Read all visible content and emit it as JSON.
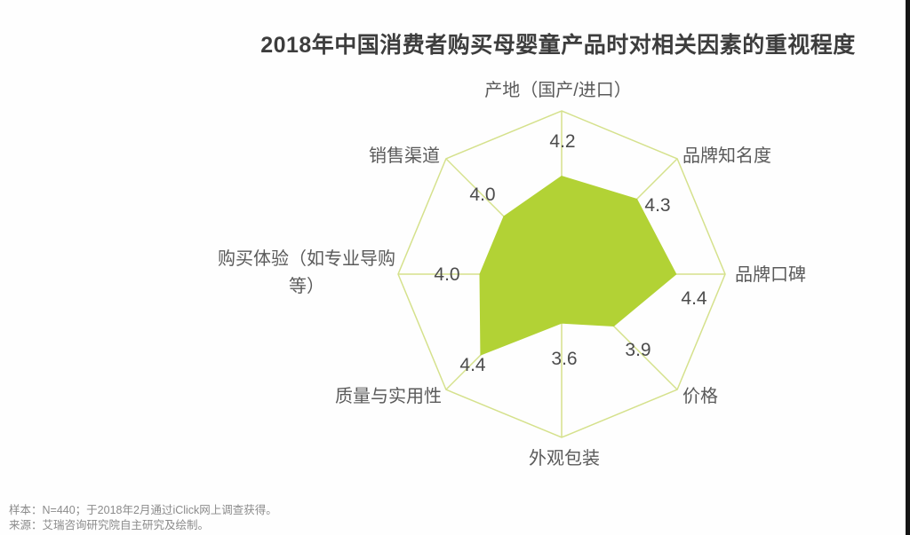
{
  "title": "2018年中国消费者购买母婴童产品时对相关因素的重视程度",
  "chart_data": {
    "type": "radar",
    "categories": [
      "产地（国产/进口）",
      "品牌知名度",
      "品牌口碑",
      "价格",
      "外观包装",
      "质量与实用性",
      "购买体验（如专业导购等）",
      "销售渠道"
    ],
    "values": [
      4.2,
      4.3,
      4.4,
      3.9,
      3.6,
      4.4,
      4.0,
      4.0
    ],
    "value_labels": [
      "4.2",
      "4.3",
      "4.4",
      "3.9",
      "3.6",
      "4.4",
      "4.0",
      "4.0"
    ],
    "r_range": [
      3,
      5
    ],
    "grid": "outer-octagon-with-radial-spokes, no inner rings, no tick labels",
    "legend": "none",
    "start_angle_deg": -90,
    "colors": {
      "fill": "#b2d235",
      "grid": "#d5e18c",
      "title_text": "#3d3d3d",
      "label_text": "#5a5a5a",
      "value_text": "#4c4c4c",
      "footer_text": "#8b8b8b"
    }
  },
  "footer": {
    "sample": "样本：N=440；于2018年2月通过iClick网上调查获得。",
    "source": "来源：艾瑞咨询研究院自主研究及绘制。"
  }
}
